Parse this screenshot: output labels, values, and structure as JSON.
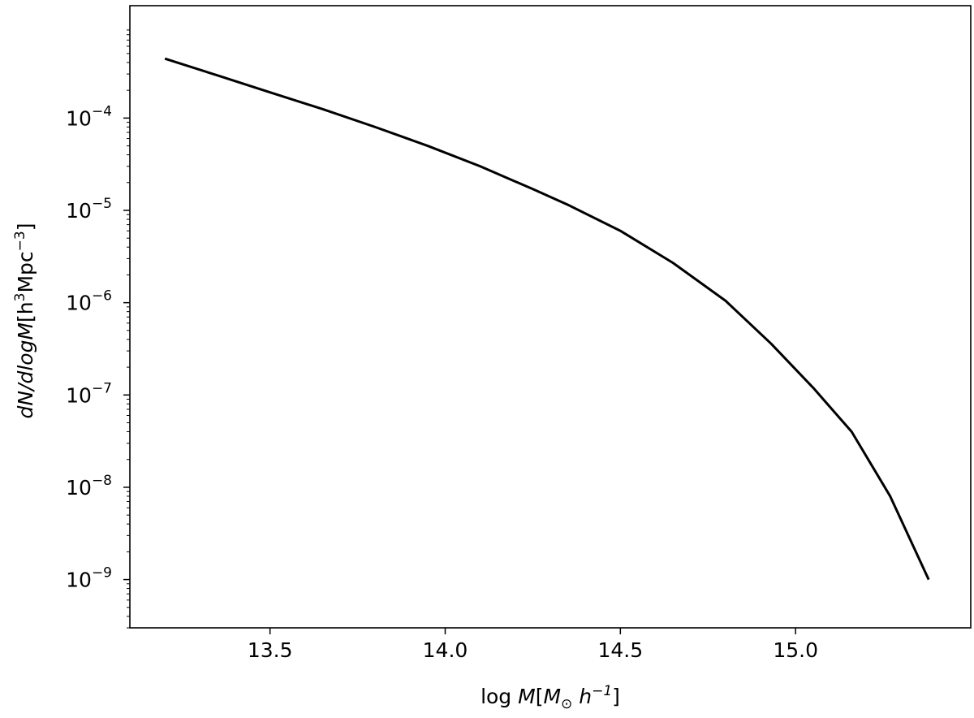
{
  "chart_data": {
    "type": "line",
    "title": "",
    "xlabel": {
      "prefix": "log ",
      "italic_main": "M",
      "open_bracket": "[",
      "italic_unit": "M",
      "subscript": "⊙",
      "space_unit": " h",
      "superscript": "−1",
      "close_bracket": "]"
    },
    "ylabel": {
      "italic_part": "dN/dlogM",
      "roman_part_1": "[h",
      "sup_1": "3",
      "roman_part_2": "Mpc",
      "sup_2": "−3",
      "roman_part_3": "]"
    },
    "x_scale": "linear",
    "y_scale": "log",
    "xlim": [
      13.1,
      15.5
    ],
    "ylim": [
      3e-10,
      0.00165
    ],
    "x_ticks": [
      {
        "value": 13.5,
        "label": "13.5"
      },
      {
        "value": 14.0,
        "label": "14.0"
      },
      {
        "value": 14.5,
        "label": "14.5"
      },
      {
        "value": 15.0,
        "label": "15.0"
      }
    ],
    "y_ticks": [
      {
        "value": 1e-09,
        "base": "10",
        "exp": "−9"
      },
      {
        "value": 1e-08,
        "base": "10",
        "exp": "−8"
      },
      {
        "value": 1e-07,
        "base": "10",
        "exp": "−7"
      },
      {
        "value": 1e-06,
        "base": "10",
        "exp": "−6"
      },
      {
        "value": 1e-05,
        "base": "10",
        "exp": "−5"
      },
      {
        "value": 0.0001,
        "base": "10",
        "exp": "−4"
      }
    ],
    "grid": false,
    "legend": "none",
    "series": [
      {
        "color": "#000000",
        "x": [
          13.2,
          13.35,
          13.5,
          13.65,
          13.8,
          13.95,
          14.1,
          14.25,
          14.35,
          14.5,
          14.65,
          14.8,
          14.93,
          15.05,
          15.16,
          15.27,
          15.38
        ],
        "y": [
          0.00044,
          0.00029,
          0.00019,
          0.000125,
          8e-05,
          5e-05,
          3e-05,
          1.7e-05,
          1.15e-05,
          6e-06,
          2.7e-06,
          1.05e-06,
          3.6e-07,
          1.2e-07,
          4e-08,
          8e-09,
          1e-09
        ]
      }
    ]
  }
}
